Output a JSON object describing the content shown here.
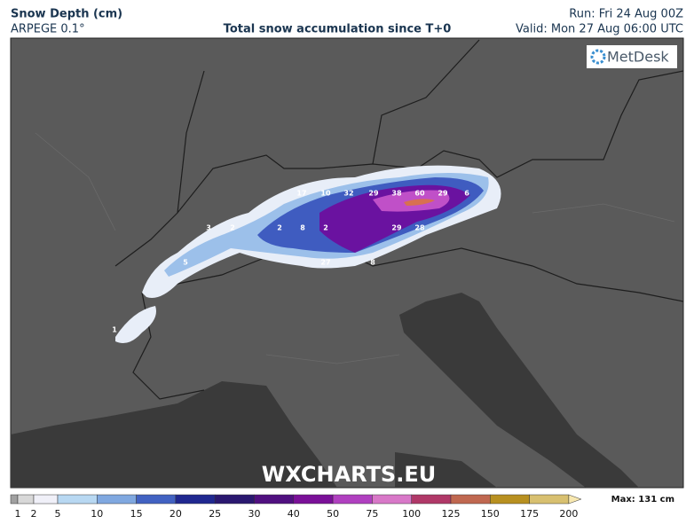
{
  "header": {
    "title": "Snow Depth (cm)",
    "model": "ARPEGE 0.1°",
    "subtitle": "Total snow accumulation since T+0",
    "run": "Run: Fri 24 Aug 00Z",
    "valid": "Valid: Mon 27 Aug 06:00 UTC"
  },
  "logo": "MetDesk",
  "watermark": "WXCHARTS.EU",
  "map": {
    "labels": [
      17,
      10,
      32,
      29,
      38,
      60,
      29,
      6,
      3,
      2,
      2,
      8,
      2,
      29,
      28,
      27,
      8,
      5,
      1
    ]
  },
  "legend": {
    "ticks": [
      1,
      2,
      5,
      10,
      15,
      20,
      25,
      30,
      40,
      50,
      75,
      100,
      125,
      150,
      175,
      200
    ],
    "colors": [
      "#a0a0a0",
      "#d8d8d8",
      "#f0f0f8",
      "#b8d8f2",
      "#80a8e0",
      "#4262c2",
      "#202890",
      "#2a1870",
      "#501080",
      "#7a1098",
      "#b040c0",
      "#d878c8",
      "#b03868",
      "#c06850",
      "#b89020",
      "#d8c070",
      "#f8e8b0"
    ],
    "max": "Max: 131 cm"
  }
}
